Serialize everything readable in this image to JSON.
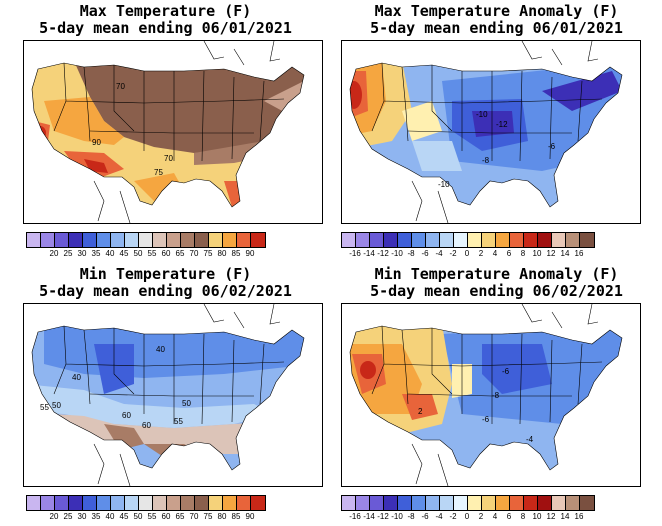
{
  "panels": [
    {
      "id": "max-temp",
      "title_line1": "Max Temperature (F)",
      "title_line2": "5-day mean ending 06/01/2021",
      "colors": [
        "#c9b6f0",
        "#9a86e6",
        "#6a5ad6",
        "#3c2fb6",
        "#3f5fd9",
        "#5f8ee8",
        "#8fb5f0",
        "#b9d6f5",
        "#e6e6e6",
        "#dcc4b8",
        "#c9a08c",
        "#a87c66",
        "#8a5f4c",
        "#f5d27a",
        "#f5a640",
        "#e8643a",
        "#c82818"
      ],
      "tick_labels": [
        "20",
        "25",
        "30",
        "35",
        "40",
        "45",
        "50",
        "55",
        "60",
        "65",
        "70",
        "75",
        "80",
        "85",
        "90"
      ],
      "contour_labels": [
        "70",
        "90",
        "70",
        "75"
      ]
    },
    {
      "id": "max-temp-anomaly",
      "title_line1": "Max Temperature Anomaly (F)",
      "title_line2": "5-day mean ending 06/01/2021",
      "colors": [
        "#c9b6f0",
        "#9a86e6",
        "#6a5ad6",
        "#3c2fb6",
        "#3f5fd9",
        "#5f8ee8",
        "#8fb5f0",
        "#b9d6f5",
        "#e6f5ff",
        "#fff0b0",
        "#f5d27a",
        "#f5a640",
        "#e8643a",
        "#c82818",
        "#a01010",
        "#e8c8b8",
        "#b89078",
        "#7a5040"
      ],
      "tick_labels": [
        "-16",
        "-14",
        "-12",
        "-10",
        "-8",
        "-6",
        "-4",
        "-2",
        "0",
        "2",
        "4",
        "6",
        "8",
        "10",
        "12",
        "14",
        "16"
      ],
      "contour_labels": [
        "-10",
        "-12",
        "-8",
        "-6",
        "-10"
      ]
    },
    {
      "id": "min-temp",
      "title_line1": "Min Temperature (F)",
      "title_line2": "5-day mean ending 06/02/2021",
      "colors": [
        "#c9b6f0",
        "#9a86e6",
        "#6a5ad6",
        "#3c2fb6",
        "#3f5fd9",
        "#5f8ee8",
        "#8fb5f0",
        "#b9d6f5",
        "#e6e6e6",
        "#dcc4b8",
        "#c9a08c",
        "#a87c66",
        "#8a5f4c",
        "#f5d27a",
        "#f5a640",
        "#e8643a",
        "#c82818"
      ],
      "tick_labels": [
        "20",
        "25",
        "30",
        "35",
        "40",
        "45",
        "50",
        "55",
        "60",
        "65",
        "70",
        "75",
        "80",
        "85",
        "90"
      ],
      "contour_labels": [
        "40",
        "40",
        "50",
        "50",
        "55",
        "60",
        "60",
        "55"
      ]
    },
    {
      "id": "min-temp-anomaly",
      "title_line1": "Min Temperature Anomaly (F)",
      "title_line2": "5-day mean ending 06/02/2021",
      "colors": [
        "#c9b6f0",
        "#9a86e6",
        "#6a5ad6",
        "#3c2fb6",
        "#3f5fd9",
        "#5f8ee8",
        "#8fb5f0",
        "#b9d6f5",
        "#e6f5ff",
        "#fff0b0",
        "#f5d27a",
        "#f5a640",
        "#e8643a",
        "#c82818",
        "#a01010",
        "#e8c8b8",
        "#b89078",
        "#7a5040"
      ],
      "tick_labels": [
        "-16",
        "-14",
        "-12",
        "-10",
        "-8",
        "-6",
        "-4",
        "-2",
        "0",
        "2",
        "4",
        "6",
        "8",
        "10",
        "12",
        "14",
        "16"
      ],
      "contour_labels": [
        "-6",
        "-8",
        "-6",
        "-4",
        "2"
      ]
    }
  ]
}
